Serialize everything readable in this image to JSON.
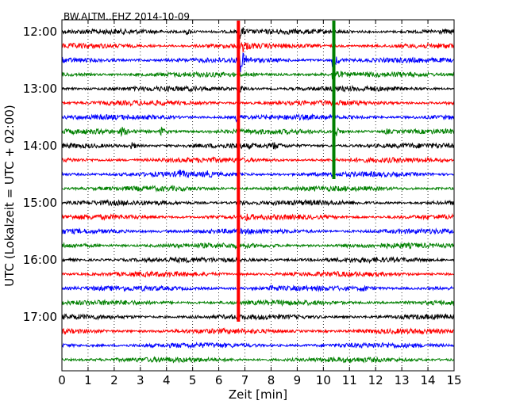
{
  "chart_data": {
    "type": "line",
    "title": "BW.ALTM..EHZ 2014-10-09",
    "xlabel": "Zeit  [min]",
    "ylabel": "UTC (Lokalzeit = UTC + 02:00)",
    "xlim": [
      0,
      15
    ],
    "x_ticks": [
      "0",
      "1",
      "2",
      "3",
      "4",
      "5",
      "6",
      "7",
      "8",
      "9",
      "10",
      "11",
      "12",
      "13",
      "14",
      "15"
    ],
    "y_ticks": [
      "12:00",
      "13:00",
      "14:00",
      "15:00",
      "16:00",
      "17:00"
    ],
    "grid": true,
    "trace_colors": [
      "#000000",
      "#ff0000",
      "#0000ff",
      "#008000"
    ],
    "series": [
      {
        "values": [
          "12:00"
        ]
      },
      {
        "values": [
          "12:15"
        ]
      },
      {
        "values": [
          "12:30"
        ]
      },
      {
        "values": [
          "12:45"
        ]
      },
      {
        "values": [
          "13:00"
        ]
      },
      {
        "values": [
          "13:15"
        ]
      },
      {
        "values": [
          "13:30"
        ]
      },
      {
        "values": [
          "13:45"
        ]
      },
      {
        "values": [
          "14:00"
        ]
      },
      {
        "values": [
          "14:15"
        ]
      },
      {
        "values": [
          "14:30"
        ]
      },
      {
        "values": [
          "14:45"
        ]
      },
      {
        "values": [
          "15:00"
        ]
      },
      {
        "values": [
          "15:15"
        ]
      },
      {
        "values": [
          "15:30"
        ]
      },
      {
        "values": [
          "15:45"
        ]
      },
      {
        "values": [
          "16:00"
        ]
      },
      {
        "values": [
          "16:15"
        ]
      },
      {
        "values": [
          "16:30"
        ]
      },
      {
        "values": [
          "16:45"
        ]
      },
      {
        "values": [
          "17:00"
        ]
      },
      {
        "values": [
          "17:15"
        ]
      },
      {
        "values": [
          "17:30"
        ]
      },
      {
        "values": [
          "17:45"
        ]
      }
    ],
    "events": [
      {
        "trace": "12:00",
        "minute": 4.8,
        "amplitude": 1.2
      },
      {
        "trace": "12:00",
        "minute": 6.8,
        "amplitude": 3.0
      },
      {
        "trace": "12:15",
        "minute": 6.9,
        "amplitude": 2.5
      },
      {
        "trace": "12:30",
        "minute": 6.8,
        "amplitude": 6.0
      },
      {
        "trace": "12:30",
        "minute": 10.4,
        "amplitude": 4.0
      },
      {
        "trace": "12:45",
        "minute": 10.4,
        "amplitude": 4.0
      },
      {
        "trace": "13:30",
        "minute": 6.7,
        "amplitude": 1.5
      },
      {
        "trace": "13:45",
        "minute": 2.3,
        "amplitude": 1.3
      },
      {
        "trace": "13:45",
        "minute": 3.8,
        "amplitude": 1.8
      },
      {
        "trace": "13:45",
        "minute": 10.5,
        "amplitude": 2.0
      },
      {
        "trace": "13:45",
        "minute": 12.4,
        "amplitude": 1.0
      },
      {
        "trace": "14:00",
        "minute": 2.7,
        "amplitude": 1.3
      },
      {
        "trace": "14:00",
        "minute": 8.1,
        "amplitude": 1.2
      },
      {
        "trace": "14:30",
        "minute": 4.5,
        "amplitude": 1.3
      },
      {
        "trace": "14:30",
        "minute": 5.5,
        "amplitude": 1.2
      },
      {
        "trace": "15:15",
        "minute": 7.1,
        "amplitude": 0.9
      },
      {
        "trace": "16:30",
        "minute": 8.0,
        "amplitude": 1.4
      },
      {
        "trace": "16:30",
        "minute": 11.5,
        "amplitude": 1.4
      },
      {
        "trace": "13:00",
        "minute": 6.8,
        "amplitude": 2.0
      },
      {
        "trace": "15:00",
        "minute": 6.8,
        "amplitude": 1.0
      }
    ]
  }
}
